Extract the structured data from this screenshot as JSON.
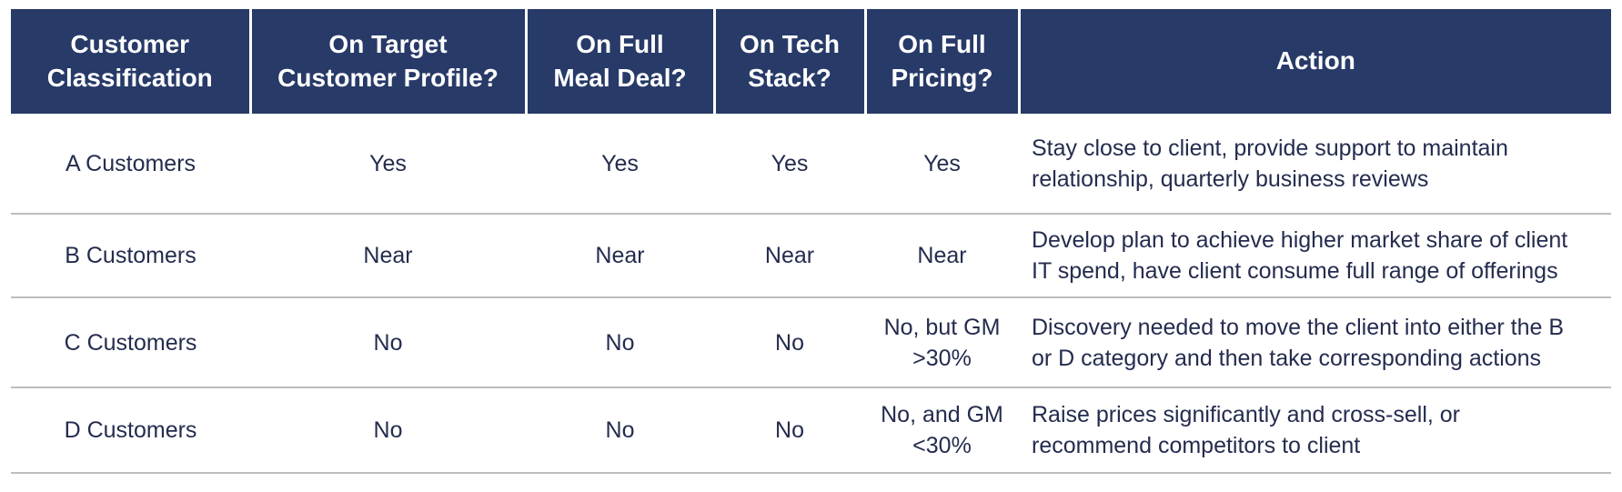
{
  "colors": {
    "header_bg": "#273a68",
    "header_text": "#ffffff",
    "body_text": "#242c4e",
    "row_divider": "#bdbdbd",
    "background": "#ffffff"
  },
  "header": {
    "columns": [
      "Customer\nClassification",
      "On Target\nCustomer Profile?",
      "On Full\nMeal Deal?",
      "On Tech\nStack?",
      "On Full\nPricing?",
      "Action"
    ]
  },
  "rows": [
    {
      "cells": [
        "A Customers",
        "Yes",
        "Yes",
        "Yes",
        "Yes",
        "Stay close to client, provide support to maintain\nrelationship, quarterly business reviews"
      ]
    },
    {
      "cells": [
        "B Customers",
        "Near",
        "Near",
        "Near",
        "Near",
        "Develop plan to achieve higher market share of client\nIT spend, have client consume full range of offerings"
      ]
    },
    {
      "cells": [
        "C Customers",
        "No",
        "No",
        "No",
        "No, but GM\n>30%",
        "Discovery needed to move the client into either the B\nor D category and then take corresponding actions"
      ]
    },
    {
      "cells": [
        "D Customers",
        "No",
        "No",
        "No",
        "No, and GM\n<30%",
        "Raise prices significantly and cross-sell, or\nrecommend competitors to client"
      ]
    }
  ]
}
